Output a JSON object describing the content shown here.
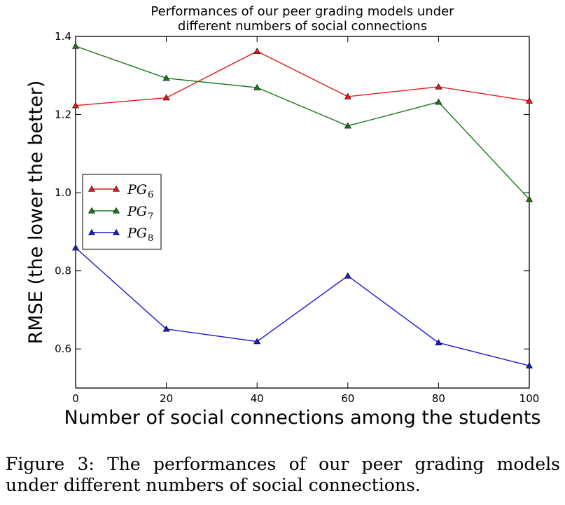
{
  "chart_data": {
    "type": "line",
    "title": [
      "Performances of our peer grading models under",
      "different numbers of social connections"
    ],
    "xlabel": "Number of social connections among the students",
    "ylabel": "RMSE (the lower the better)",
    "xlim": [
      0,
      100
    ],
    "ylim": [
      0.5,
      1.4
    ],
    "x_ticks": [
      0,
      20,
      40,
      60,
      80,
      100
    ],
    "y_ticks": [
      0.6,
      0.8,
      1.0,
      1.2,
      1.4
    ],
    "x_tick_labels": [
      "0",
      "20",
      "40",
      "60",
      "80",
      "100"
    ],
    "y_tick_labels": [
      "0.6",
      "0.8",
      "1.0",
      "1.2",
      "1.4"
    ],
    "x": [
      0,
      20,
      40,
      60,
      80,
      100
    ],
    "grid": false,
    "legend_position": "center-left",
    "marker": "triangle",
    "series": [
      {
        "name": "PG",
        "subscript": "6",
        "color": "#e41a1c",
        "values": [
          1.223,
          1.243,
          1.362,
          1.246,
          1.271,
          1.235
        ]
      },
      {
        "name": "PG",
        "subscript": "7",
        "color": "#1a7a1a",
        "values": [
          1.375,
          1.293,
          1.269,
          1.171,
          1.232,
          0.983
        ]
      },
      {
        "name": "PG",
        "subscript": "8",
        "color": "#1c1ccc",
        "values": [
          0.859,
          0.651,
          0.619,
          0.787,
          0.616,
          0.557
        ]
      }
    ]
  },
  "caption": {
    "label": "Figure 3:",
    "text": "The performances of our peer grading models under different numbers of social connections."
  }
}
